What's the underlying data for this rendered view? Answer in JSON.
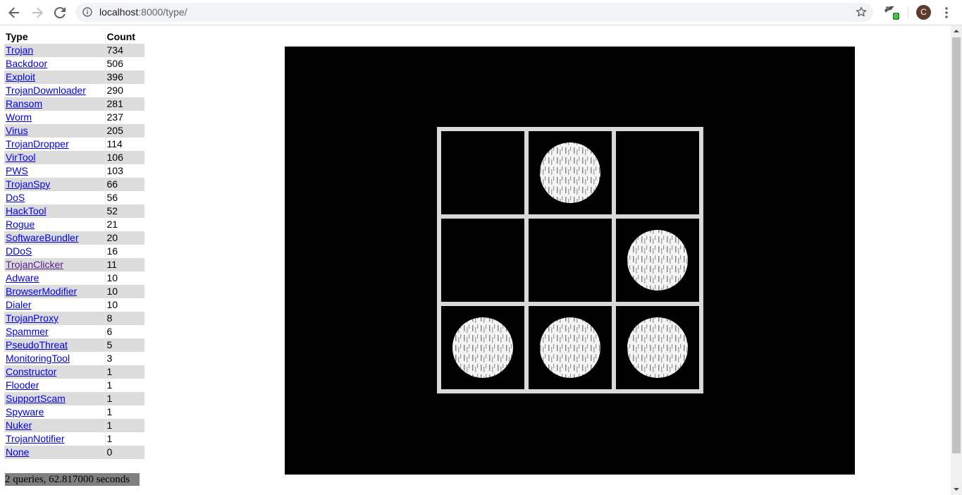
{
  "browser": {
    "url_host": "localhost",
    "url_path": ":8000/type/",
    "extension_badge": "0",
    "avatar_letter": "C"
  },
  "table": {
    "headers": [
      "Type",
      "Count"
    ],
    "rows": [
      {
        "type": "Trojan",
        "count": "734"
      },
      {
        "type": "Backdoor",
        "count": "506"
      },
      {
        "type": "Exploit",
        "count": "396"
      },
      {
        "type": "TrojanDownloader",
        "count": "290"
      },
      {
        "type": "Ransom",
        "count": "281"
      },
      {
        "type": "Worm",
        "count": "237"
      },
      {
        "type": "Virus",
        "count": "205"
      },
      {
        "type": "TrojanDropper",
        "count": "114"
      },
      {
        "type": "VirTool",
        "count": "106"
      },
      {
        "type": "PWS",
        "count": "103"
      },
      {
        "type": "TrojanSpy",
        "count": "66"
      },
      {
        "type": "DoS",
        "count": "56"
      },
      {
        "type": "HackTool",
        "count": "52"
      },
      {
        "type": "Rogue",
        "count": "21"
      },
      {
        "type": "SoftwareBundler",
        "count": "20"
      },
      {
        "type": "DDoS",
        "count": "16"
      },
      {
        "type": "TrojanClicker",
        "count": "11",
        "visited": true
      },
      {
        "type": "Adware",
        "count": "10"
      },
      {
        "type": "BrowserModifier",
        "count": "10"
      },
      {
        "type": "Dialer",
        "count": "10"
      },
      {
        "type": "TrojanProxy",
        "count": "8"
      },
      {
        "type": "Spammer",
        "count": "6"
      },
      {
        "type": "PseudoThreat",
        "count": "5"
      },
      {
        "type": "MonitoringTool",
        "count": "3"
      },
      {
        "type": "Constructor",
        "count": "1"
      },
      {
        "type": "Flooder",
        "count": "1"
      },
      {
        "type": "SupportScam",
        "count": "1"
      },
      {
        "type": "Spyware",
        "count": "1"
      },
      {
        "type": "Nuker",
        "count": "1"
      },
      {
        "type": "TrojanNotifier",
        "count": "1"
      },
      {
        "type": "None",
        "count": "0"
      }
    ]
  },
  "footer": {
    "text": "2 queries, 62.817000 seconds"
  },
  "glider": {
    "cells": [
      [
        false,
        true,
        false
      ],
      [
        false,
        false,
        true
      ],
      [
        true,
        true,
        true
      ]
    ],
    "colors": {
      "background": "#000000",
      "line": "#d9d9d9",
      "dot": "#f2f2f2"
    }
  }
}
